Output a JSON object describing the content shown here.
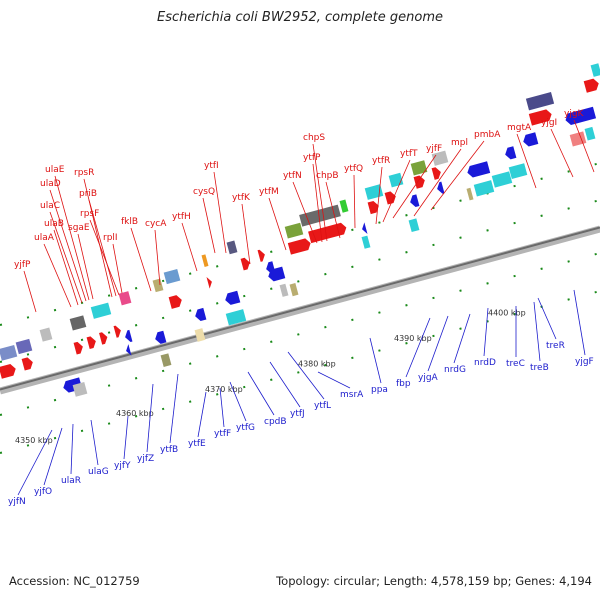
{
  "title": "Escherichia coli BW2952, complete genome",
  "footer": {
    "accession": "Accession: NC_012759",
    "summary": "Topology: circular; Length: 4,578,159 bp; Genes: 4,194"
  },
  "colors": {
    "top_label": "#dd1111",
    "bottom_label": "#1c1ccc",
    "backbone": "#8c8c8c"
  },
  "ticks": [
    "4350 kbp",
    "4360 kbp",
    "4370 kbp",
    "4380 kbp",
    "4390 kbp",
    "4400 kbp"
  ],
  "top_genes": [
    "yjfP",
    "ulaA",
    "ulaB",
    "ulaC",
    "ulaD",
    "ulaE",
    "sgaE",
    "rpsR",
    "priB",
    "rpsF",
    "rplI",
    "fklB",
    "cycA",
    "ytfH",
    "cysQ",
    "ytfI",
    "ytfK",
    "ytfM",
    "ytfN",
    "ytfP",
    "chpS",
    "chpB",
    "ytfQ",
    "ytfR",
    "ytfT",
    "yjfF",
    "mpl",
    "pmbA",
    "mgtA",
    "yjgI",
    "yjgK"
  ],
  "bottom_genes": [
    "yjfN",
    "yjfO",
    "ulaR",
    "ulaG",
    "yjfY",
    "yjfZ",
    "ytfB",
    "ytfE",
    "ytfF",
    "ytfG",
    "cpdB",
    "ytfJ",
    "ytfL",
    "msrA",
    "ppa",
    "fbp",
    "yjgA",
    "nrdG",
    "nrdD",
    "treC",
    "treB",
    "treR",
    "yjgF"
  ]
}
